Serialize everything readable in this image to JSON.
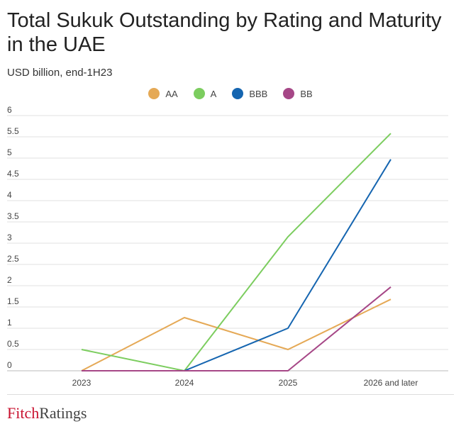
{
  "title": "Total Sukuk Outstanding by Rating and Maturity in the UAE",
  "subtitle": "USD billion, end-1H23",
  "brand": {
    "part1": "Fitch",
    "part2": "Ratings"
  },
  "chart_data": {
    "type": "line",
    "categories": [
      "2023",
      "2024",
      "2025",
      "2026 and later"
    ],
    "series": [
      {
        "name": "AA",
        "color": "#e5a956",
        "values": [
          0,
          1.25,
          0.5,
          1.68
        ]
      },
      {
        "name": "A",
        "color": "#7ccd5f",
        "values": [
          0.5,
          0,
          3.15,
          5.58
        ]
      },
      {
        "name": "BBB",
        "color": "#1565b0",
        "values": [
          0,
          0,
          1.0,
          4.97
        ]
      },
      {
        "name": "BB",
        "color": "#a64787",
        "values": [
          0,
          0,
          0,
          1.97
        ]
      }
    ],
    "yticks": [
      "0",
      "0.5",
      "1",
      "1.5",
      "2",
      "2.5",
      "3",
      "3.5",
      "4",
      "4.5",
      "5",
      "5.5",
      "6"
    ],
    "ylim": [
      0,
      6
    ],
    "grid": true,
    "legend": "top-center"
  }
}
